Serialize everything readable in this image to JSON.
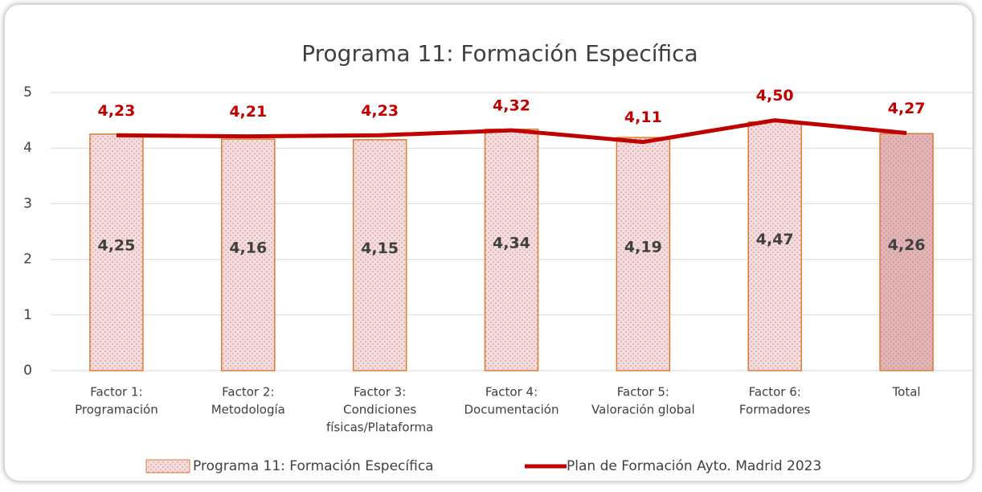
{
  "chart_data": {
    "type": "bar_line",
    "title": "Programa 11: Formación Específica",
    "categories": [
      [
        "Factor 1:",
        "Programación"
      ],
      [
        "Factor 2:",
        "Metodología"
      ],
      [
        "Factor 3:",
        "Condiciones",
        "físicas/Plataforma"
      ],
      [
        "Factor 4:",
        "Documentación"
      ],
      [
        "Factor 5:",
        "Valoración global"
      ],
      [
        "Factor 6:",
        "Formadores"
      ],
      [
        "Total"
      ]
    ],
    "series": [
      {
        "name": "Programa 11: Formación Específica",
        "type": "bar",
        "color": "#f6dcdc",
        "colors": [
          "#f6dcdc",
          "#f6dcdc",
          "#f6dcdc",
          "#f6dcdc",
          "#f6dcdc",
          "#f6dcdc",
          "#e2b4b6"
        ],
        "edge_color": "#e07b2a",
        "values": [
          4.25,
          4.16,
          4.15,
          4.34,
          4.19,
          4.47,
          4.26
        ],
        "value_labels": [
          "4,25",
          "4,16",
          "4,15",
          "4,34",
          "4,19",
          "4,47",
          "4,26"
        ]
      },
      {
        "name": "Plan de Formación Ayto. Madrid 2023",
        "type": "line",
        "color": "#c00000",
        "values": [
          4.23,
          4.21,
          4.23,
          4.32,
          4.11,
          4.5,
          4.27
        ],
        "value_labels": [
          "4,23",
          "4,21",
          "4,23",
          "4,32",
          "4,11",
          "4,50",
          "4,27"
        ]
      }
    ],
    "ylim": [
      0,
      5
    ],
    "yticks": [
      0,
      1,
      2,
      3,
      4,
      5
    ],
    "grid": true,
    "legend": "bottom"
  }
}
